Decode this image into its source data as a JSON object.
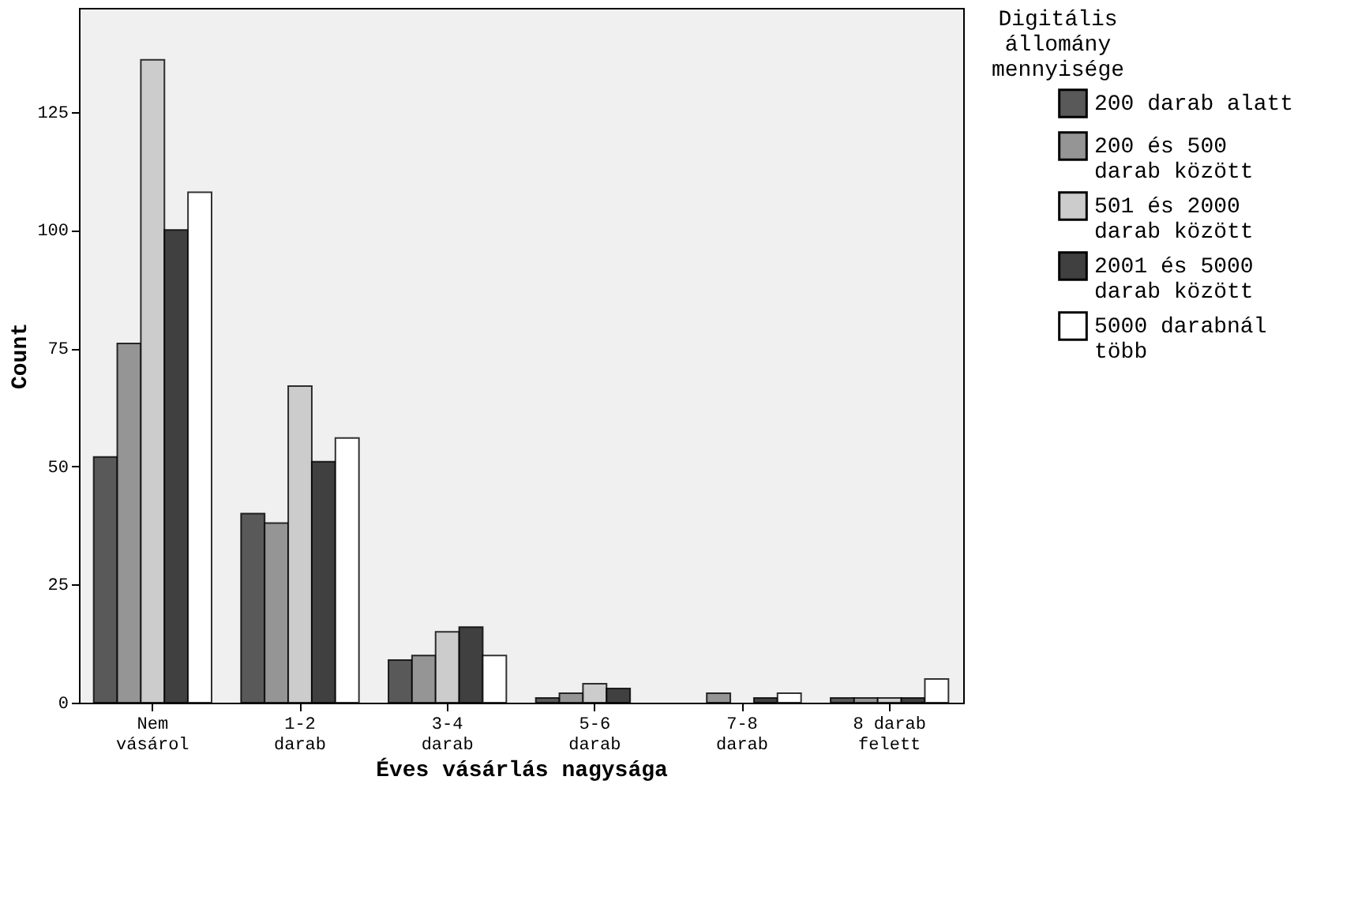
{
  "chart_data": {
    "type": "bar",
    "xlabel": "Éves vásárlás nagysága",
    "ylabel": "Count",
    "legend_title": "Digitális\nállomány\nmennyisége",
    "categories": [
      "Nem\nvásárol",
      "1-2\ndarab",
      "3-4\ndarab",
      "5-6\ndarab",
      "7-8\ndarab",
      "8 darab\nfelett"
    ],
    "series": [
      {
        "name": "200 darab alatt",
        "color": "#595959",
        "values": [
          52,
          40,
          9,
          1,
          0,
          1
        ]
      },
      {
        "name": "200 és 500\ndarab között",
        "color": "#959595",
        "values": [
          76,
          38,
          10,
          2,
          2,
          1
        ]
      },
      {
        "name": "501 és 2000\ndarab között",
        "color": "#cccccc",
        "values": [
          136,
          67,
          15,
          4,
          0,
          1
        ]
      },
      {
        "name": "2001 és 5000\ndarab között",
        "color": "#404040",
        "values": [
          100,
          51,
          16,
          3,
          1,
          1
        ]
      },
      {
        "name": "5000 darabnál\ntöbb",
        "color": "#ffffff",
        "values": [
          108,
          56,
          10,
          0,
          2,
          5
        ]
      }
    ],
    "ylim": [
      0,
      147
    ],
    "yticks": [
      0,
      25,
      50,
      75,
      100,
      125
    ],
    "grid": false,
    "legend": "right"
  }
}
